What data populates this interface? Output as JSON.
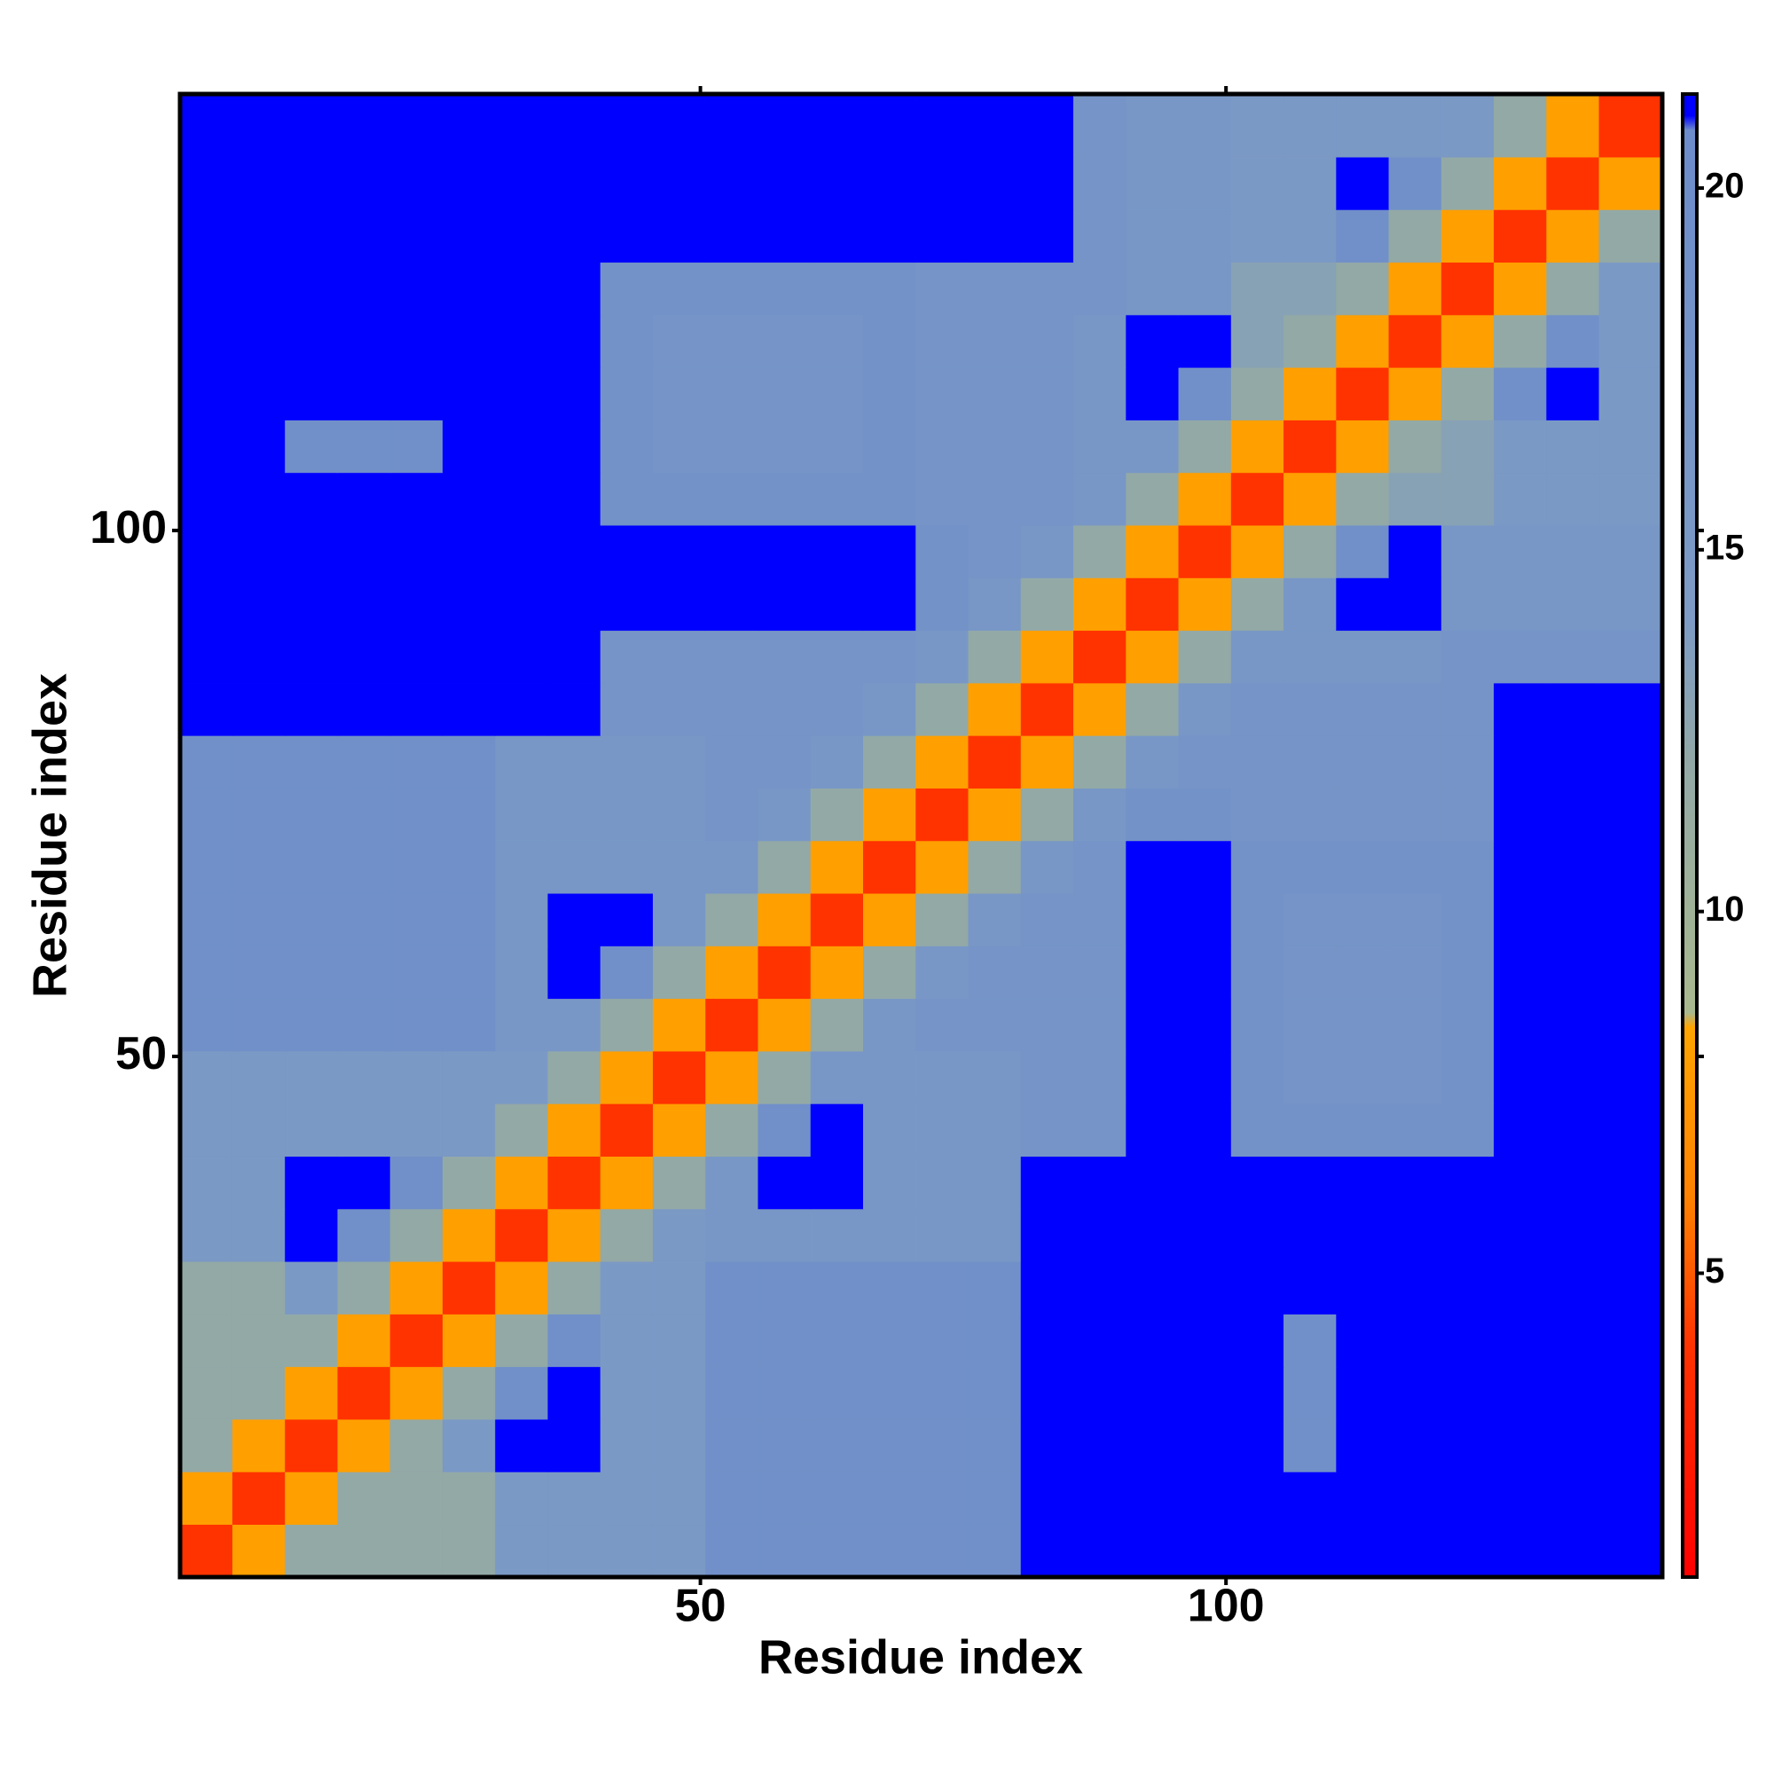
{
  "chart_data": {
    "type": "heatmap",
    "xlabel": "Residue index",
    "ylabel": "Residue index",
    "xlim": [
      0.5,
      141.5
    ],
    "ylim": [
      0.5,
      141.5
    ],
    "xticks": [
      50,
      100
    ],
    "yticks": [
      50,
      100
    ],
    "xbins": [
      0.5,
      5.5,
      10.5,
      15.5,
      20.5,
      25.5,
      30.5,
      35.5,
      40.5,
      45.5,
      50.5,
      55.5,
      60.5,
      65.5,
      70.5,
      75.5,
      80.5,
      85.5,
      90.5,
      95.5,
      100.5,
      105.5,
      110.5,
      115.5,
      120.5,
      125.5,
      130.5,
      135.5,
      141.5
    ],
    "ybins": [
      0.5,
      5.5,
      10.5,
      15.5,
      20.5,
      25.5,
      30.5,
      35.5,
      40.5,
      45.5,
      50.5,
      55.5,
      60.5,
      65.5,
      70.5,
      75.5,
      80.5,
      85.5,
      90.5,
      95.5,
      100.5,
      105.5,
      110.5,
      115.5,
      120.5,
      125.5,
      130.5,
      135.5,
      141.5
    ],
    "z": [
      [
        4,
        8,
        12,
        12,
        12,
        12,
        15,
        15,
        15,
        15,
        19,
        19,
        19,
        19,
        19,
        19,
        21,
        21,
        21,
        21,
        21,
        21,
        21,
        21,
        21,
        21,
        21,
        21
      ],
      [
        8,
        4,
        8,
        12,
        12,
        12,
        15,
        15,
        15,
        15,
        19,
        19,
        19,
        19,
        19,
        19,
        21,
        21,
        21,
        21,
        21,
        21,
        21,
        21,
        21,
        21,
        21,
        21
      ],
      [
        12,
        8,
        4,
        8,
        12,
        15,
        21,
        21,
        15,
        15,
        19,
        19,
        19,
        19,
        19,
        19,
        21,
        21,
        21,
        21,
        21,
        19,
        21,
        21,
        21,
        21,
        21,
        21
      ],
      [
        12,
        12,
        8,
        4,
        8,
        12,
        19,
        21,
        15,
        15,
        19,
        19,
        19,
        19,
        19,
        19,
        21,
        21,
        21,
        21,
        21,
        19,
        21,
        21,
        21,
        21,
        21,
        21
      ],
      [
        12,
        12,
        12,
        8,
        4,
        8,
        12,
        19,
        15,
        15,
        19,
        19,
        19,
        19,
        19,
        19,
        21,
        21,
        21,
        21,
        21,
        19,
        21,
        21,
        21,
        21,
        21,
        21
      ],
      [
        12,
        12,
        15,
        12,
        8,
        4,
        8,
        12,
        15,
        15,
        19,
        19,
        19,
        19,
        19,
        19,
        21,
        21,
        21,
        21,
        21,
        21,
        21,
        21,
        21,
        21,
        21,
        21
      ],
      [
        15,
        15,
        21,
        19,
        12,
        8,
        4,
        8,
        12,
        15,
        16,
        16,
        16,
        16,
        16,
        16,
        21,
        21,
        21,
        21,
        21,
        21,
        21,
        21,
        21,
        21,
        21,
        21
      ],
      [
        15,
        15,
        21,
        21,
        19,
        12,
        8,
        4,
        8,
        12,
        16,
        21,
        21,
        16,
        16,
        16,
        21,
        21,
        21,
        21,
        21,
        21,
        21,
        21,
        21,
        21,
        21,
        21
      ],
      [
        15,
        15,
        15,
        15,
        15,
        15,
        12,
        8,
        4,
        8,
        12,
        19,
        21,
        16,
        16,
        16,
        17,
        17,
        21,
        21,
        18,
        18,
        18,
        18,
        18,
        21,
        21,
        21
      ],
      [
        15,
        15,
        15,
        15,
        15,
        15,
        15,
        12,
        8,
        4,
        8,
        12,
        16,
        16,
        16,
        16,
        17,
        17,
        21,
        21,
        18,
        17,
        17,
        17,
        18,
        21,
        21,
        21
      ],
      [
        19,
        19,
        19,
        19,
        19,
        19,
        16,
        16,
        12,
        8,
        4,
        8,
        12,
        16,
        17,
        17,
        17,
        17,
        21,
        21,
        18,
        17,
        17,
        17,
        18,
        21,
        21,
        21
      ],
      [
        19,
        19,
        19,
        19,
        19,
        19,
        16,
        21,
        19,
        12,
        8,
        4,
        8,
        12,
        16,
        17,
        17,
        17,
        21,
        21,
        18,
        17,
        17,
        17,
        18,
        21,
        21,
        21
      ],
      [
        19,
        19,
        19,
        19,
        19,
        19,
        16,
        21,
        21,
        16,
        12,
        8,
        4,
        8,
        12,
        16,
        17,
        17,
        21,
        21,
        18,
        17,
        17,
        17,
        18,
        21,
        21,
        21
      ],
      [
        19,
        19,
        19,
        19,
        19,
        19,
        16,
        16,
        16,
        16,
        16,
        12,
        8,
        4,
        8,
        12,
        16,
        17,
        21,
        21,
        18,
        18,
        18,
        18,
        18,
        21,
        21,
        21
      ],
      [
        19,
        19,
        19,
        19,
        19,
        19,
        16,
        16,
        16,
        16,
        17,
        16,
        12,
        8,
        4,
        8,
        12,
        16,
        18,
        18,
        17,
        17,
        17,
        17,
        17,
        21,
        21,
        21
      ],
      [
        19,
        19,
        19,
        19,
        19,
        19,
        16,
        16,
        16,
        16,
        17,
        17,
        16,
        12,
        8,
        4,
        8,
        12,
        16,
        17,
        17,
        17,
        17,
        17,
        17,
        21,
        21,
        21
      ],
      [
        21,
        21,
        21,
        21,
        21,
        21,
        21,
        21,
        17,
        17,
        17,
        17,
        17,
        16,
        12,
        8,
        4,
        8,
        12,
        16,
        17,
        17,
        17,
        17,
        17,
        21,
        21,
        21
      ],
      [
        21,
        21,
        21,
        21,
        21,
        21,
        21,
        21,
        17,
        17,
        17,
        17,
        17,
        17,
        16,
        12,
        8,
        4,
        8,
        12,
        16,
        16,
        16,
        16,
        17,
        17,
        17,
        17
      ],
      [
        21,
        21,
        21,
        21,
        21,
        21,
        21,
        21,
        21,
        21,
        21,
        21,
        21,
        21,
        18,
        16,
        12,
        8,
        4,
        8,
        12,
        16,
        21,
        21,
        16,
        16,
        16,
        16
      ],
      [
        21,
        21,
        21,
        21,
        21,
        21,
        21,
        21,
        21,
        21,
        21,
        21,
        21,
        21,
        18,
        17,
        16,
        12,
        8,
        4,
        8,
        12,
        19,
        21,
        16,
        16,
        16,
        16
      ],
      [
        21,
        21,
        21,
        21,
        21,
        21,
        21,
        21,
        18,
        18,
        18,
        18,
        18,
        18,
        17,
        17,
        17,
        16,
        12,
        8,
        4,
        8,
        12,
        13,
        13,
        15,
        15,
        15
      ],
      [
        21,
        21,
        19,
        19,
        19,
        21,
        21,
        21,
        18,
        17,
        17,
        17,
        17,
        18,
        17,
        17,
        17,
        16,
        16,
        12,
        8,
        4,
        8,
        12,
        13,
        15,
        15,
        15
      ],
      [
        21,
        21,
        21,
        21,
        21,
        21,
        21,
        21,
        18,
        17,
        17,
        17,
        17,
        18,
        17,
        17,
        17,
        16,
        21,
        19,
        12,
        8,
        4,
        8,
        12,
        19,
        21,
        15
      ],
      [
        21,
        21,
        21,
        21,
        21,
        21,
        21,
        21,
        18,
        17,
        17,
        17,
        17,
        18,
        17,
        17,
        17,
        16,
        21,
        21,
        13,
        12,
        8,
        4,
        8,
        12,
        19,
        15
      ],
      [
        21,
        21,
        21,
        21,
        21,
        21,
        21,
        21,
        18,
        18,
        18,
        18,
        18,
        18,
        17,
        17,
        17,
        17,
        16,
        16,
        13,
        13,
        12,
        8,
        4,
        8,
        12,
        15
      ],
      [
        21,
        21,
        21,
        21,
        21,
        21,
        21,
        21,
        21,
        21,
        21,
        21,
        21,
        21,
        21,
        21,
        21,
        17,
        16,
        16,
        15,
        15,
        19,
        12,
        8,
        4,
        8,
        12
      ],
      [
        21,
        21,
        21,
        21,
        21,
        21,
        21,
        21,
        21,
        21,
        21,
        21,
        21,
        21,
        21,
        21,
        21,
        17,
        16,
        16,
        15,
        15,
        21,
        19,
        12,
        8,
        4,
        8
      ],
      [
        21,
        21,
        21,
        21,
        21,
        21,
        21,
        21,
        21,
        21,
        21,
        21,
        21,
        21,
        21,
        21,
        21,
        17,
        16,
        16,
        15,
        15,
        15,
        15,
        15,
        12,
        8,
        4
      ]
    ],
    "colorscale": [
      [
        0.8,
        "#ff0000"
      ],
      [
        4,
        "#ff3300"
      ],
      [
        6,
        "#ff8000"
      ],
      [
        8.4,
        "#ffa500"
      ],
      [
        8.6,
        "#a9b98e"
      ],
      [
        12,
        "#93a9a6"
      ],
      [
        14,
        "#7d9bc4"
      ],
      [
        20.8,
        "#6c8ccb"
      ],
      [
        21,
        "#0000ff"
      ],
      [
        21.3,
        "#0000ff"
      ]
    ],
    "colorbar": {
      "lim": [
        0.8,
        21.3
      ],
      "ticks": [
        5,
        10,
        15,
        20
      ]
    }
  }
}
